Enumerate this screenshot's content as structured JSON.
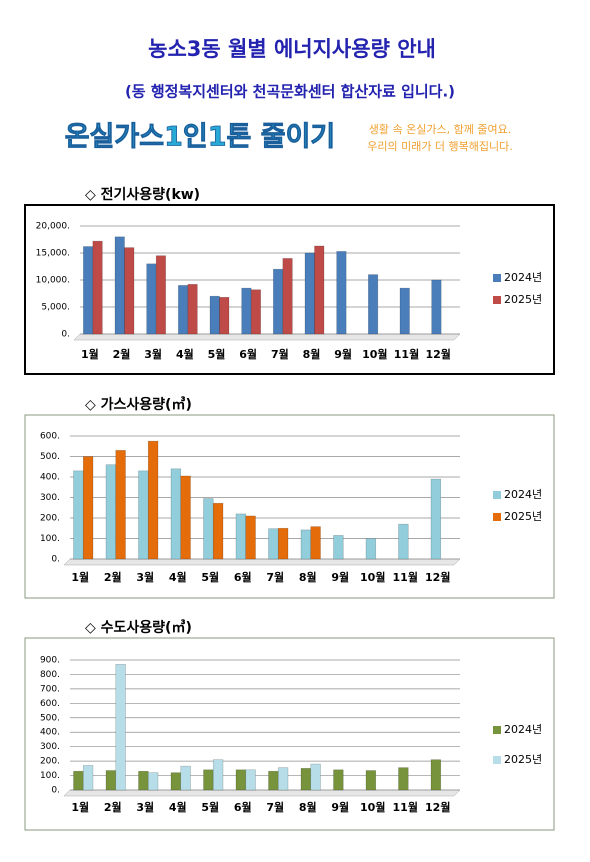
{
  "header": {
    "title": "농소3동 월별 에너지사용량 안내",
    "subtitle": "(동 행정복지센터와 천곡문화센터 합산자료 입니다.)"
  },
  "banner": {
    "slogan": "온실가스1인1톤 줄이기",
    "lines": [
      "생활 속 온실가스, 함께 줄여요.",
      "우리의 미래가 더 행복해집니다."
    ]
  },
  "chart_data": [
    {
      "type": "bar",
      "title": "◇ 전기사용량(kw)",
      "categories": [
        "1월",
        "2월",
        "3월",
        "4월",
        "5월",
        "6월",
        "7월",
        "8월",
        "9월",
        "10월",
        "11월",
        "12월"
      ],
      "series": [
        {
          "name": "2024년",
          "color": "#4a7ebb",
          "values": [
            16200,
            18000,
            13000,
            9000,
            7000,
            8500,
            12000,
            15000,
            15300,
            11000,
            8500,
            10000
          ]
        },
        {
          "name": "2025년",
          "color": "#be4b48",
          "values": [
            17200,
            16000,
            14500,
            9200,
            6800,
            8200,
            14000,
            16300,
            null,
            null,
            null,
            null
          ]
        }
      ],
      "ylim": [
        0,
        20000
      ],
      "yticks": [
        {
          "value": 0,
          "label": "0."
        },
        {
          "value": 5000,
          "label": "5,000."
        },
        {
          "value": 10000,
          "label": "10,000."
        },
        {
          "value": 15000,
          "label": "15,000."
        },
        {
          "value": 20000,
          "label": "20,000."
        }
      ],
      "grid": true,
      "legend": "right"
    },
    {
      "type": "bar",
      "title": "◇ 가스사용량(㎥)",
      "categories": [
        "1월",
        "2월",
        "3월",
        "4월",
        "5월",
        "6월",
        "7월",
        "8월",
        "9월",
        "10월",
        "11월",
        "12월"
      ],
      "series": [
        {
          "name": "2024년",
          "color": "#92cddc",
          "values": [
            430,
            460,
            430,
            440,
            295,
            220,
            148,
            142,
            115,
            100,
            170,
            390
          ]
        },
        {
          "name": "2025년",
          "color": "#e46c0a",
          "values": [
            500,
            530,
            575,
            405,
            272,
            210,
            150,
            158,
            null,
            null,
            null,
            null
          ]
        }
      ],
      "ylim": [
        0,
        600
      ],
      "yticks": [
        {
          "value": 0,
          "label": "0."
        },
        {
          "value": 100,
          "label": "100."
        },
        {
          "value": 200,
          "label": "200."
        },
        {
          "value": 300,
          "label": "300."
        },
        {
          "value": 400,
          "label": "400."
        },
        {
          "value": 500,
          "label": "500."
        },
        {
          "value": 600,
          "label": "600."
        }
      ],
      "grid": true,
      "legend": "right"
    },
    {
      "type": "bar",
      "title": "◇ 수도사용량(㎥)",
      "categories": [
        "1월",
        "2월",
        "3월",
        "4월",
        "5월",
        "6월",
        "7월",
        "8월",
        "9월",
        "10월",
        "11월",
        "12월"
      ],
      "series": [
        {
          "name": "2024년",
          "color": "#77933c",
          "values": [
            130,
            135,
            130,
            120,
            140,
            140,
            130,
            150,
            140,
            135,
            155,
            210
          ]
        },
        {
          "name": "2025년",
          "color": "#b7dee8",
          "values": [
            170,
            870,
            120,
            165,
            210,
            140,
            155,
            180,
            null,
            null,
            null,
            null
          ]
        }
      ],
      "ylim": [
        0,
        900
      ],
      "yticks": [
        {
          "value": 0,
          "label": "0."
        },
        {
          "value": 100,
          "label": "100."
        },
        {
          "value": 200,
          "label": "200."
        },
        {
          "value": 300,
          "label": "300."
        },
        {
          "value": 400,
          "label": "400."
        },
        {
          "value": 500,
          "label": "500."
        },
        {
          "value": 600,
          "label": "600."
        },
        {
          "value": 700,
          "label": "700."
        },
        {
          "value": 800,
          "label": "800."
        },
        {
          "value": 900,
          "label": "900."
        }
      ],
      "grid": true,
      "legend": "right"
    }
  ]
}
